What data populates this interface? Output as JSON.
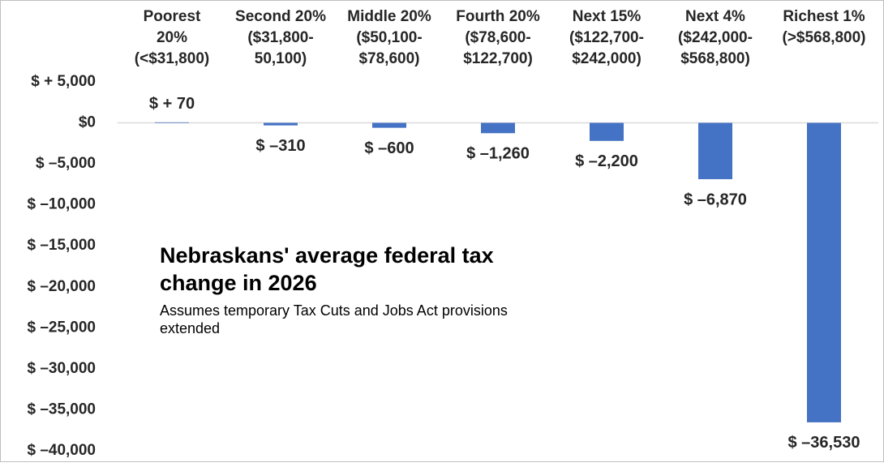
{
  "chart_data": {
    "type": "bar",
    "title": "Nebraskans' average federal tax change in 2026",
    "subtitle": "Assumes temporary Tax Cuts and Jobs Act provisions extended",
    "categories": [
      "Poorest\n20%\n(<$31,800)",
      "Second 20%\n($31,800-\n50,100)",
      "Middle 20%\n($50,100-\n$78,600)",
      "Fourth 20%\n($78,600-\n$122,700)",
      "Next 15%\n($122,700-\n$242,000)",
      "Next 4%\n($242,000-\n$568,800)",
      "Richest 1%\n(>$568,800)"
    ],
    "values": [
      70,
      -310,
      -600,
      -1260,
      -2200,
      -6870,
      -36530
    ],
    "value_labels": [
      "$ + 70",
      "$ –310",
      "$ –600",
      "$ –1,260",
      "$ –2,200",
      "$ –6,870",
      "$ –36,530"
    ],
    "color": "#4472c4",
    "ylim": [
      -40000,
      5000
    ],
    "yticks": [
      {
        "value": 5000,
        "label": "$ + 5,000"
      },
      {
        "value": 0,
        "label": "$0"
      },
      {
        "value": -5000,
        "label": "$ –5,000"
      },
      {
        "value": -10000,
        "label": "$ –10,000"
      },
      {
        "value": -15000,
        "label": "$ –15,000"
      },
      {
        "value": -20000,
        "label": "$ –20,000"
      },
      {
        "value": -25000,
        "label": "$ –25,000"
      },
      {
        "value": -30000,
        "label": "$ –30,000"
      },
      {
        "value": -35000,
        "label": "$ –35,000"
      },
      {
        "value": -40000,
        "label": "$ –40,000"
      }
    ],
    "grid": false
  }
}
